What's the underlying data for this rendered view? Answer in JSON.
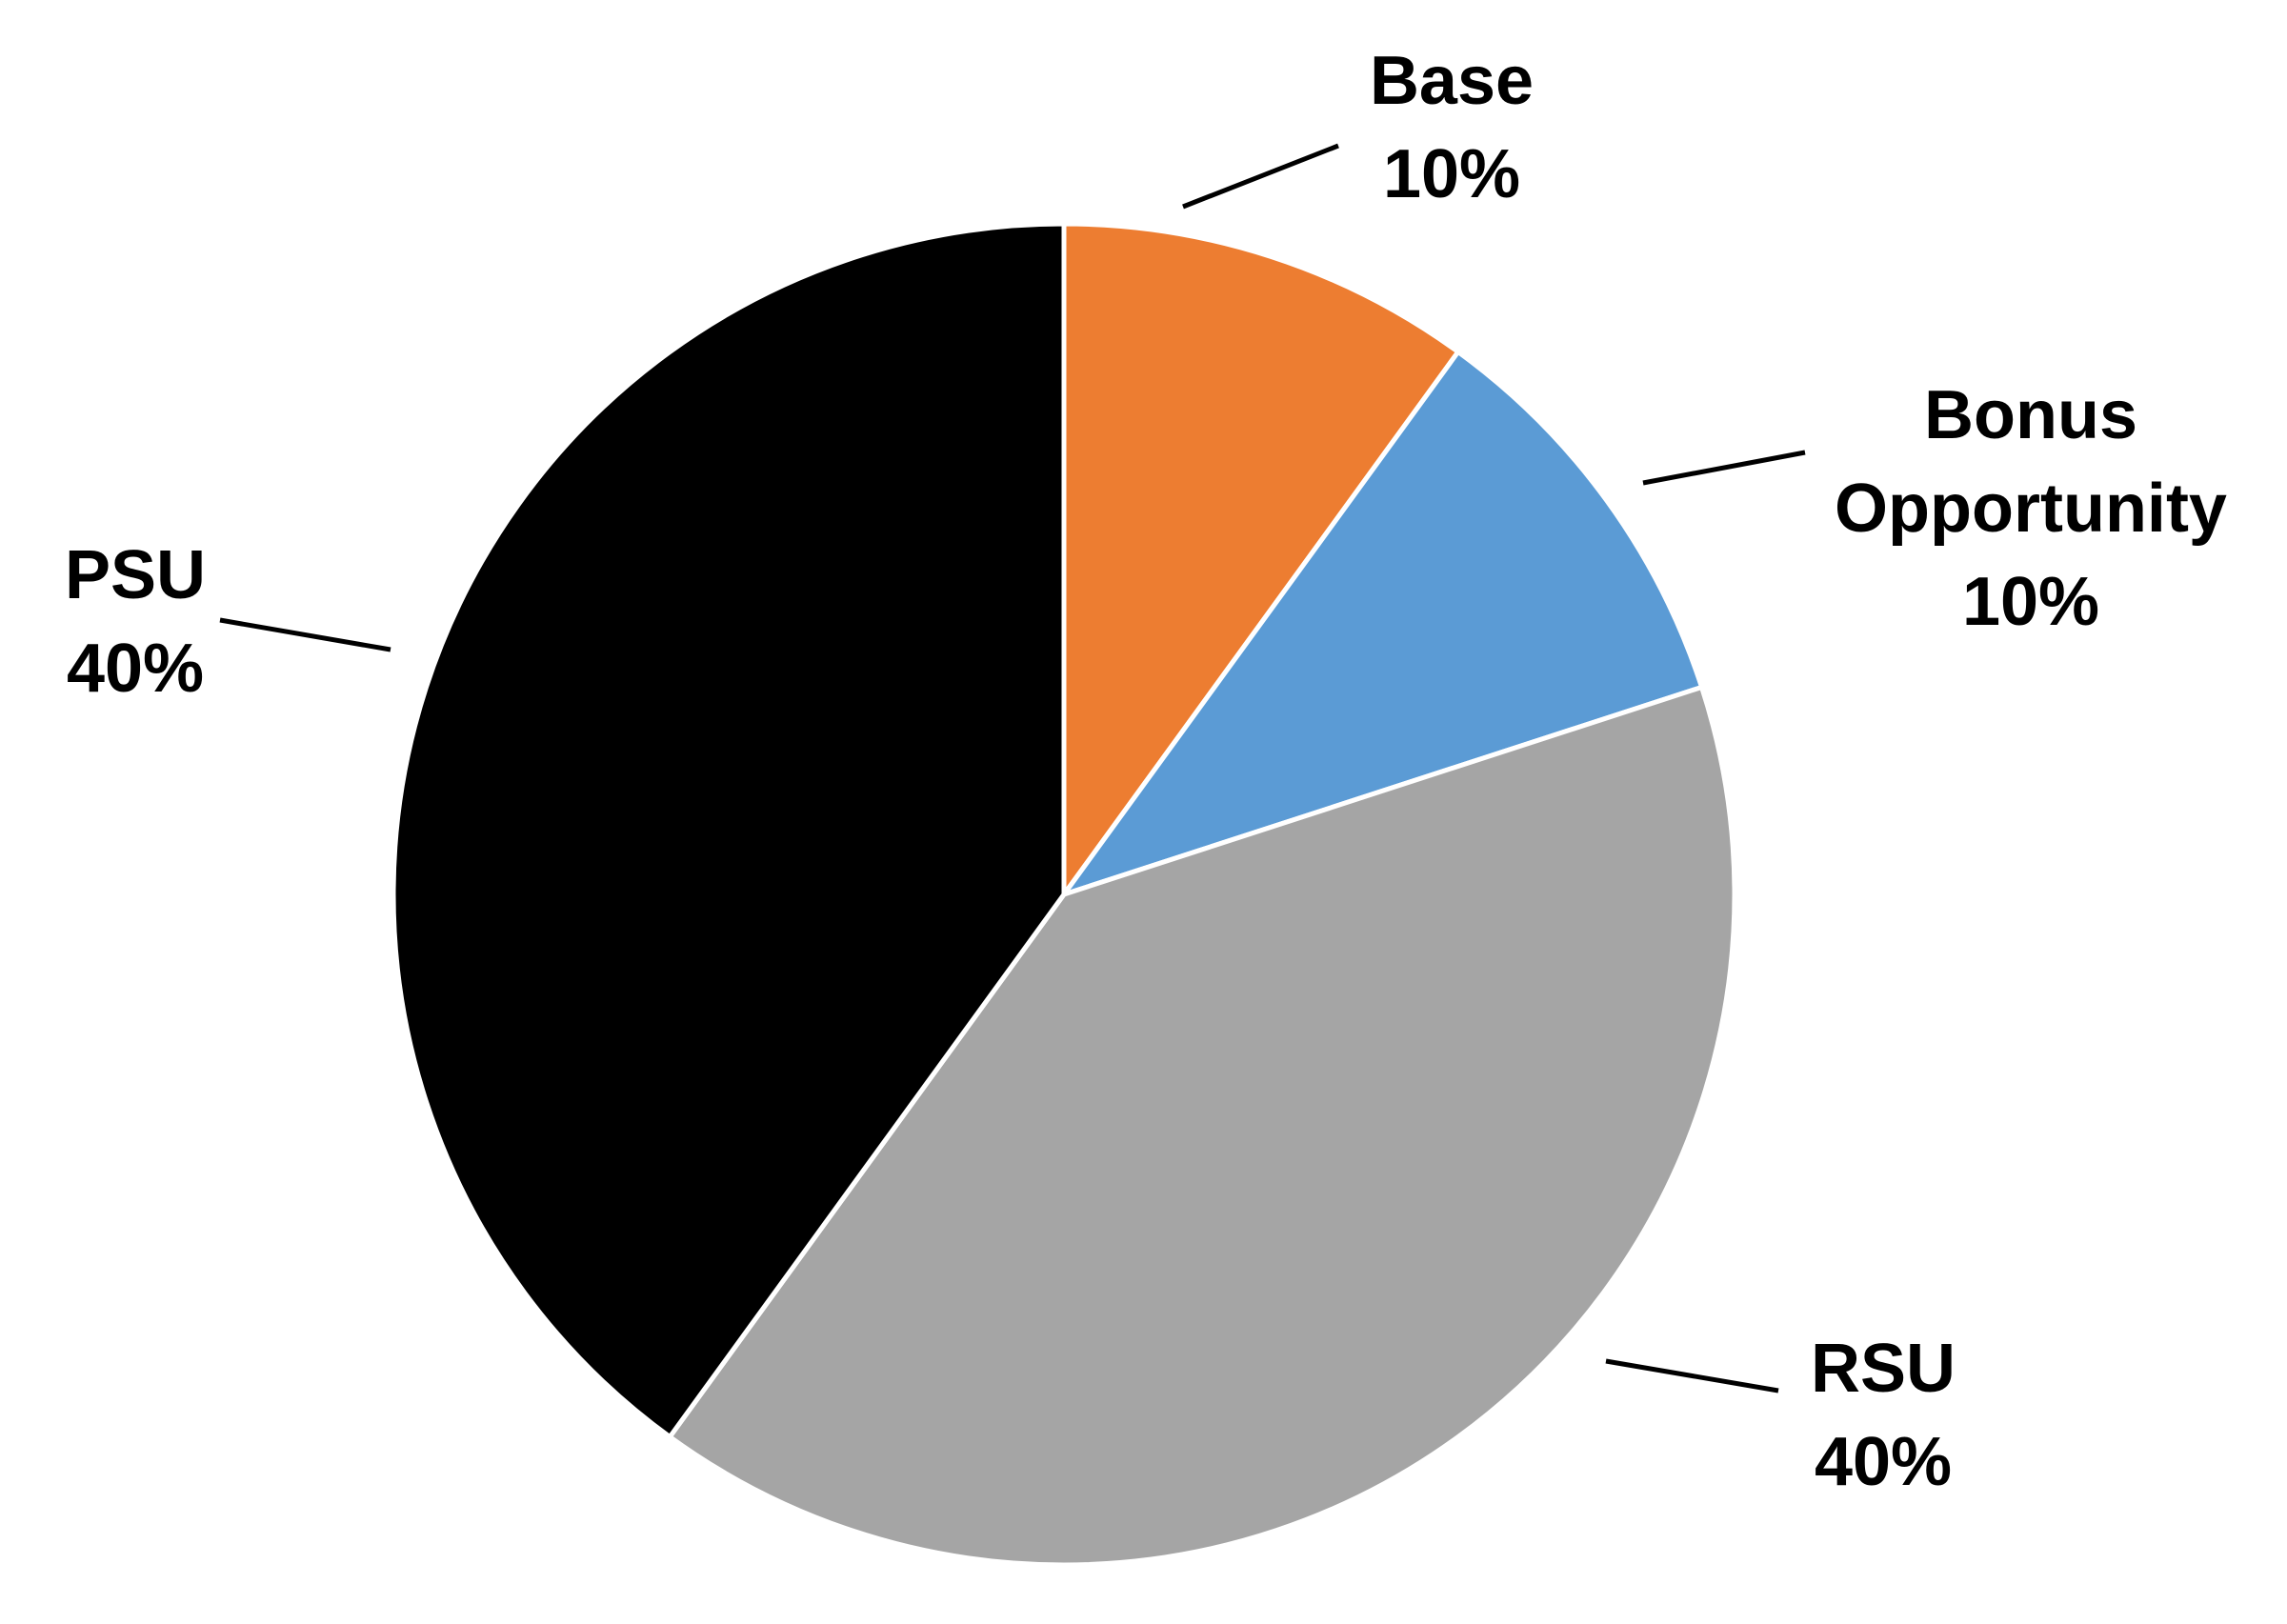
{
  "chart_data": {
    "type": "pie",
    "categories": [
      "Base",
      "Bonus Opportunity",
      "RSU",
      "PSU"
    ],
    "values": [
      10,
      10,
      40,
      40
    ],
    "value_labels": [
      "10%",
      "10%",
      "40%",
      "40%"
    ],
    "colors": [
      "#ED7D31",
      "#5B9BD5",
      "#A5A5A5",
      "#000000"
    ]
  }
}
